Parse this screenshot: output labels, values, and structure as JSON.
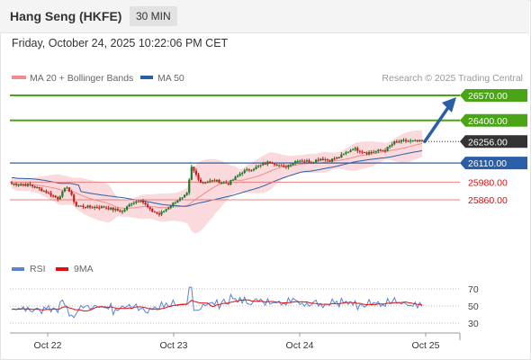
{
  "header": {
    "title": "Hang Seng (HKFE)",
    "timeframe": "30 MIN",
    "datetime": "Friday, October 24, 2025 10:22:06 PM CET",
    "credit": "Research © 2025 Trading Central"
  },
  "legend": {
    "ma20_label": "MA 20 + Bollinger Bands",
    "ma20_color": "#f28b8b",
    "ma50_label": "MA 50",
    "ma50_color": "#2a5fa8"
  },
  "colors": {
    "up_candle": "#1e7a28",
    "down_candle": "#c81e1e",
    "resistance": "#4aa516",
    "support": "#2a5fa8",
    "minor_support": "#e88080",
    "current": "#333333",
    "arrow": "#2a5fa8",
    "bollinger_fill": "#fadadd",
    "rsi": "#5a82d6",
    "rsi_ma": "#e01010"
  },
  "chart_data": {
    "type": "candlestick",
    "y_range": [
      25600,
      26600
    ],
    "x_ticks": [
      "Oct 22",
      "Oct 23",
      "Oct 24",
      "Oct 25"
    ],
    "levels": [
      {
        "kind": "resistance",
        "value": 26570.0,
        "label": "26570.00"
      },
      {
        "kind": "resistance",
        "value": 26400.0,
        "label": "26400.00"
      },
      {
        "kind": "current",
        "value": 26256.0,
        "label": "26256.00"
      },
      {
        "kind": "support",
        "value": 26110.0,
        "label": "26110.00"
      },
      {
        "kind": "minor_support",
        "value": 25980.0,
        "label": "25980.00"
      },
      {
        "kind": "minor_support",
        "value": 25860.0,
        "label": "25860.00"
      }
    ],
    "forecast_target": 26570.0,
    "rsi": {
      "legend": {
        "rsi": "RSI",
        "ma": "9MA"
      },
      "levels": [
        "70",
        "50",
        "30"
      ],
      "range": [
        20,
        80
      ]
    }
  }
}
